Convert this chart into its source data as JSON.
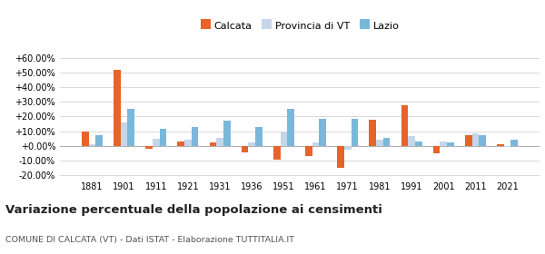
{
  "years": [
    1881,
    1901,
    1911,
    1921,
    1931,
    1936,
    1951,
    1961,
    1971,
    1981,
    1991,
    2001,
    2011,
    2021
  ],
  "calcata": [
    10.0,
    52.0,
    -2.0,
    3.0,
    2.0,
    -4.5,
    -9.5,
    -7.0,
    -15.0,
    17.5,
    28.0,
    -5.0,
    7.0,
    1.0
  ],
  "provincia_vt": [
    1.0,
    16.0,
    5.0,
    4.0,
    5.5,
    2.5,
    10.0,
    2.0,
    -2.5,
    4.0,
    6.5,
    3.0,
    8.5,
    -1.0
  ],
  "lazio": [
    7.0,
    25.5,
    11.5,
    13.0,
    17.0,
    13.0,
    25.5,
    18.5,
    18.5,
    5.5,
    3.0,
    2.5,
    7.5,
    4.0
  ],
  "color_calcata": "#e8622a",
  "color_provincia": "#c5d5ea",
  "color_lazio": "#7ab8d9",
  "title": "Variazione percentuale della popolazione ai censimenti",
  "subtitle": "COMUNE DI CALCATA (VT) - Dati ISTAT - Elaborazione TUTTITALIA.IT",
  "ylim": [
    -22,
    65
  ],
  "yticks": [
    -20,
    -10,
    0,
    10,
    20,
    30,
    40,
    50,
    60
  ],
  "background_color": "#ffffff",
  "legend_labels": [
    "Calcata",
    "Provincia di VT",
    "Lazio"
  ],
  "grid_color": "#d8d8d8"
}
